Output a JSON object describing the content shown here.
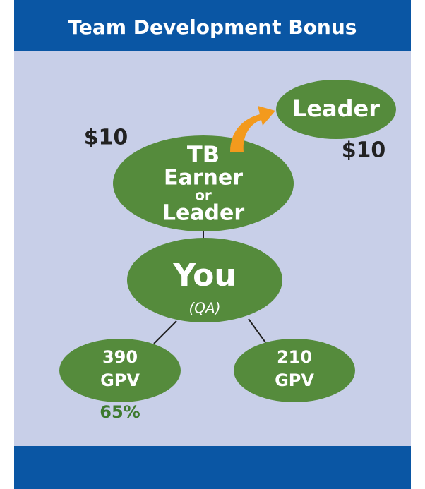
{
  "header": {
    "title": "Team Development Bonus"
  },
  "nodes": [
    {
      "lines": [
        "Leader"
      ]
    },
    {
      "lines": [
        "TB",
        "Earner",
        "or",
        "Leader"
      ]
    },
    {
      "lines": [
        "You",
        "(QA)"
      ]
    },
    {
      "lines": [
        "390",
        "GPV"
      ]
    },
    {
      "lines": [
        "210",
        "GPV"
      ]
    }
  ],
  "amounts": {
    "left": "$10",
    "right": "$10"
  },
  "percent": "65%"
}
